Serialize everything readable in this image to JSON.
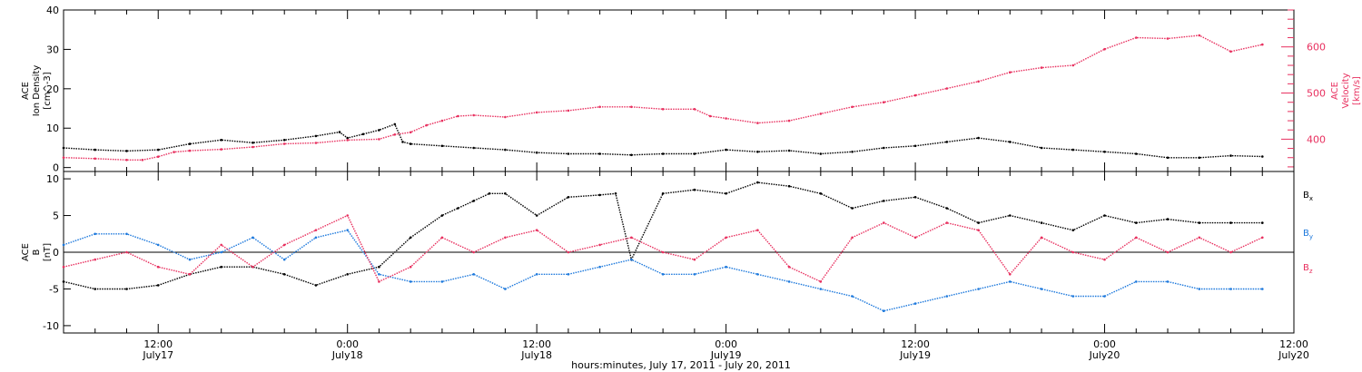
{
  "colors": {
    "black": "#000000",
    "pink": "#e8305f",
    "blue": "#1c78dc"
  },
  "chart_data": [
    {
      "type": "scatter",
      "panel": "top",
      "title": "",
      "xlabel": "hours:minutes, July 17, 2011 - July 20, 2011",
      "x_unit": "hours since July 17 00:00 UT",
      "xlim": [
        6,
        84
      ],
      "left_axis": {
        "label_lines": [
          "ACE",
          "Ion Density",
          "[cm^-3]"
        ],
        "ylim": [
          -1,
          40
        ],
        "ticks": [
          0,
          10,
          20,
          30,
          40
        ]
      },
      "right_axis": {
        "label_lines": [
          "ACE",
          "Velocity",
          "[km/s]"
        ],
        "ylim": [
          330,
          680
        ],
        "ticks": [
          400,
          500,
          600
        ]
      },
      "series": [
        {
          "name": "Ion Density",
          "axis": "left",
          "color": "#000000",
          "x": [
            6,
            8,
            10,
            12,
            14,
            16,
            18,
            20,
            22,
            23.5,
            24,
            25,
            26,
            27,
            27.5,
            28,
            30,
            32,
            34,
            36,
            38,
            40,
            42,
            44,
            46,
            48,
            50,
            52,
            54,
            56,
            58,
            60,
            62,
            64,
            66,
            68,
            70,
            72,
            74,
            76,
            78,
            80,
            82
          ],
          "y": [
            5,
            4.5,
            4.2,
            4.5,
            6,
            7,
            6.3,
            7,
            8,
            9,
            7.5,
            8.5,
            9.5,
            11,
            6.5,
            6,
            5.5,
            5,
            4.5,
            3.8,
            3.5,
            3.5,
            3.2,
            3.5,
            3.5,
            4.5,
            4,
            4.3,
            3.5,
            4,
            5,
            5.5,
            6.5,
            7.5,
            6.5,
            5,
            4.5,
            4,
            3.5,
            2.5,
            2.5,
            3,
            2.8
          ]
        },
        {
          "name": "Velocity",
          "axis": "right",
          "color": "#e8305f",
          "x": [
            6,
            8,
            10,
            11,
            12,
            13,
            14,
            16,
            18,
            20,
            22,
            24,
            26,
            27,
            28,
            29,
            30,
            31,
            32,
            34,
            36,
            38,
            40,
            42,
            44,
            46,
            47,
            48,
            50,
            52,
            54,
            56,
            58,
            60,
            62,
            64,
            66,
            68,
            70,
            72,
            74,
            76,
            78,
            80,
            82
          ],
          "y": [
            360,
            358,
            355,
            355,
            362,
            372,
            375,
            378,
            383,
            390,
            392,
            398,
            400,
            410,
            415,
            430,
            440,
            450,
            452,
            448,
            458,
            462,
            470,
            470,
            465,
            465,
            450,
            445,
            435,
            440,
            455,
            470,
            480,
            495,
            510,
            525,
            545,
            555,
            560,
            595,
            620,
            618,
            625,
            590,
            605
          ]
        }
      ]
    },
    {
      "type": "scatter",
      "panel": "bottom",
      "title": "",
      "xlim": [
        6,
        84
      ],
      "xticks": [
        {
          "x": 12,
          "time": "12:00",
          "date": "July17"
        },
        {
          "x": 24,
          "time": "0:00",
          "date": "July18"
        },
        {
          "x": 36,
          "time": "12:00",
          "date": "July18"
        },
        {
          "x": 48,
          "time": "0:00",
          "date": "July19"
        },
        {
          "x": 60,
          "time": "12:00",
          "date": "July19"
        },
        {
          "x": 72,
          "time": "0:00",
          "date": "July20"
        },
        {
          "x": 84,
          "time": "12:00",
          "date": "July20"
        }
      ],
      "ylabel_lines": [
        "ACE",
        "B",
        "[nT]"
      ],
      "ylim": [
        -11,
        11
      ],
      "yticks": [
        -10,
        -5,
        0,
        5,
        10
      ],
      "zero_line": true,
      "series": [
        {
          "name": "Bx",
          "legend_main": "B",
          "legend_sub": "x",
          "color": "#000000",
          "x": [
            6,
            8,
            10,
            12,
            14,
            16,
            18,
            20,
            22,
            24,
            26,
            28,
            30,
            31,
            32,
            33,
            34,
            36,
            38,
            40,
            41,
            42,
            44,
            46,
            48,
            50,
            52,
            54,
            56,
            58,
            60,
            62,
            64,
            66,
            68,
            70,
            72,
            74,
            76,
            78,
            80,
            82
          ],
          "y": [
            -4,
            -5,
            -5,
            -4.5,
            -3,
            -2,
            -2,
            -3,
            -4.5,
            -3,
            -2,
            2,
            5,
            6,
            7,
            8,
            8,
            5,
            7.5,
            7.8,
            8,
            -1,
            8,
            8.5,
            8,
            9.5,
            9,
            8,
            6,
            7,
            7.5,
            6,
            4,
            5,
            4,
            3,
            5,
            4,
            4.5,
            4,
            4,
            4
          ]
        },
        {
          "name": "By",
          "legend_main": "B",
          "legend_sub": "y",
          "color": "#1c78dc",
          "x": [
            6,
            8,
            10,
            12,
            14,
            16,
            18,
            20,
            22,
            24,
            26,
            28,
            30,
            32,
            34,
            36,
            38,
            40,
            42,
            44,
            46,
            48,
            50,
            52,
            54,
            56,
            58,
            60,
            62,
            64,
            66,
            68,
            70,
            72,
            74,
            76,
            78,
            80,
            82
          ],
          "y": [
            1,
            2.5,
            2.5,
            1,
            -1,
            0,
            2,
            -1,
            2,
            3,
            -3,
            -4,
            -4,
            -3,
            -5,
            -3,
            -3,
            -2,
            -1,
            -3,
            -3,
            -2,
            -3,
            -4,
            -5,
            -6,
            -8,
            -7,
            -6,
            -5,
            -4,
            -5,
            -6,
            -6,
            -4,
            -4,
            -5,
            -5,
            -5
          ]
        },
        {
          "name": "Bz",
          "legend_main": "B",
          "legend_sub": "z",
          "color": "#e8305f",
          "x": [
            6,
            8,
            10,
            12,
            14,
            16,
            18,
            20,
            22,
            24,
            26,
            28,
            30,
            32,
            34,
            36,
            38,
            40,
            42,
            44,
            46,
            48,
            50,
            52,
            54,
            56,
            58,
            60,
            62,
            64,
            66,
            68,
            70,
            72,
            74,
            76,
            78,
            80,
            82
          ],
          "y": [
            -2,
            -1,
            0,
            -2,
            -3,
            1,
            -2,
            1,
            3,
            5,
            -4,
            -2,
            2,
            0,
            2,
            3,
            0,
            1,
            2,
            0,
            -1,
            2,
            3,
            -2,
            -4,
            2,
            4,
            2,
            4,
            3,
            -3,
            2,
            0,
            -1,
            2,
            0,
            2,
            0,
            2
          ]
        }
      ]
    }
  ]
}
